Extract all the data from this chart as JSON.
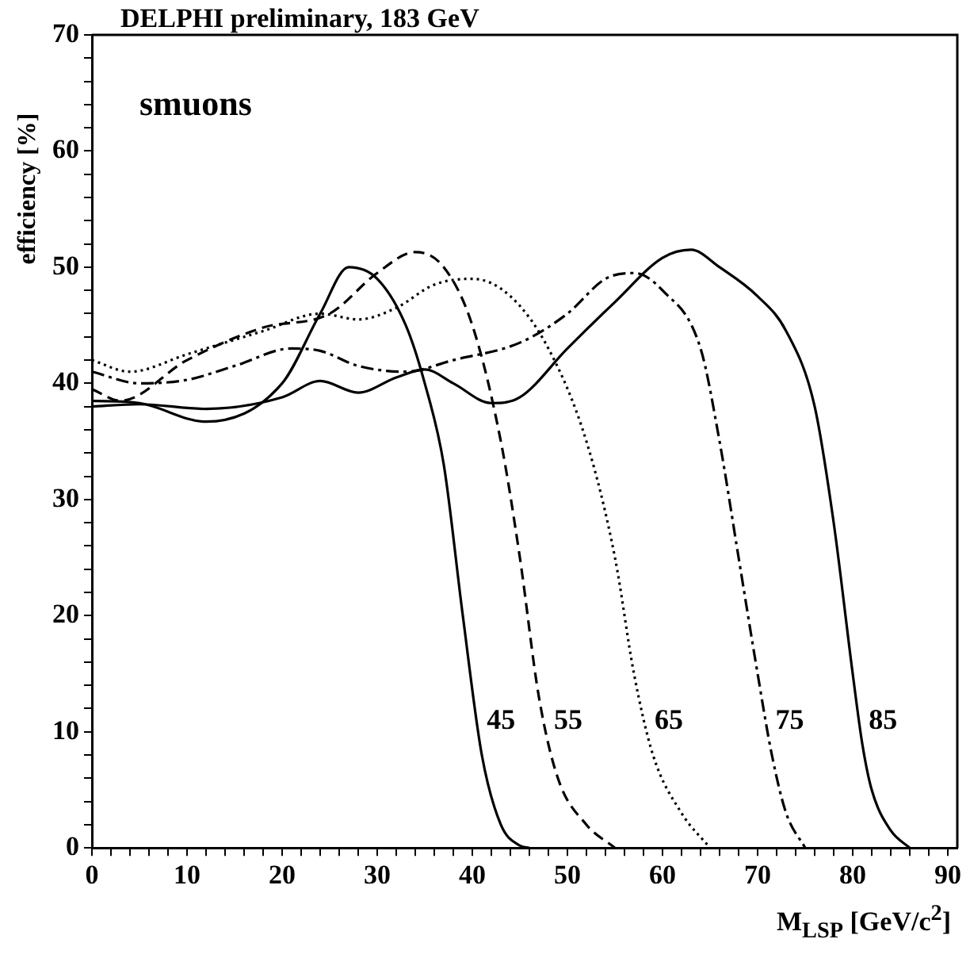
{
  "chart_data": {
    "type": "line",
    "title": "DELPHI preliminary, 183 GeV",
    "xlabel": "M$_{LSP}$ [GeV/c$^{2}$]",
    "ylabel": "efficiency [%]",
    "xlim": [
      0,
      91
    ],
    "ylim": [
      0,
      70
    ],
    "xticks": [
      0,
      {
        "value": 2,
        "label": null
      },
      {
        "value": 4,
        "label": null
      },
      {
        "value": 6,
        "label": null
      },
      {
        "value": 8,
        "label": null
      },
      10,
      {
        "value": 12,
        "label": null
      },
      {
        "value": 14,
        "label": null
      },
      {
        "value": 16,
        "label": null
      },
      {
        "value": 18,
        "label": null
      },
      20,
      {
        "value": 22,
        "label": null
      },
      {
        "value": 24,
        "label": null
      },
      {
        "value": 26,
        "label": null
      },
      {
        "value": 28,
        "label": null
      },
      30,
      {
        "value": 32,
        "label": null
      },
      {
        "value": 34,
        "label": null
      },
      {
        "value": 36,
        "label": null
      },
      {
        "value": 38,
        "label": null
      },
      40,
      {
        "value": 42,
        "label": null
      },
      {
        "value": 44,
        "label": null
      },
      {
        "value": 46,
        "label": null
      },
      {
        "value": 48,
        "label": null
      },
      50,
      {
        "value": 52,
        "label": null
      },
      {
        "value": 54,
        "label": null
      },
      {
        "value": 56,
        "label": null
      },
      {
        "value": 58,
        "label": null
      },
      60,
      {
        "value": 62,
        "label": null
      },
      {
        "value": 64,
        "label": null
      },
      {
        "value": 66,
        "label": null
      },
      {
        "value": 68,
        "label": null
      },
      70,
      {
        "value": 72,
        "label": null
      },
      {
        "value": 74,
        "label": null
      },
      {
        "value": 76,
        "label": null
      },
      {
        "value": 78,
        "label": null
      },
      80,
      {
        "value": 82,
        "label": null
      },
      {
        "value": 84,
        "label": null
      },
      {
        "value": 86,
        "label": null
      },
      {
        "value": 88,
        "label": null
      },
      90
    ],
    "yticks": [
      0,
      {
        "value": 2,
        "label": null
      },
      {
        "value": 4,
        "label": null
      },
      {
        "value": 6,
        "label": null
      },
      {
        "value": 8,
        "label": null
      },
      10,
      {
        "value": 12,
        "label": null
      },
      {
        "value": 14,
        "label": null
      },
      {
        "value": 16,
        "label": null
      },
      {
        "value": 18,
        "label": null
      },
      20,
      {
        "value": 22,
        "label": null
      },
      {
        "value": 24,
        "label": null
      },
      {
        "value": 26,
        "label": null
      },
      {
        "value": 28,
        "label": null
      },
      30,
      {
        "value": 32,
        "label": null
      },
      {
        "value": 34,
        "label": null
      },
      {
        "value": 36,
        "label": null
      },
      {
        "value": 38,
        "label": null
      },
      40,
      {
        "value": 42,
        "label": null
      },
      {
        "value": 44,
        "label": null
      },
      {
        "value": 46,
        "label": null
      },
      {
        "value": 48,
        "label": null
      },
      50,
      {
        "value": 52,
        "label": null
      },
      {
        "value": 54,
        "label": null
      },
      {
        "value": 56,
        "label": null
      },
      {
        "value": 58,
        "label": null
      },
      60,
      {
        "value": 62,
        "label": null
      },
      {
        "value": 64,
        "label": null
      },
      {
        "value": 66,
        "label": null
      },
      {
        "value": 68,
        "label": null
      },
      70
    ],
    "grid": false,
    "legend": false,
    "marker": "none",
    "series": [
      {
        "name": "45",
        "color": "#000000",
        "line_style": "solid",
        "x": [
          0,
          5,
          12,
          20,
          24,
          27,
          30,
          33,
          35,
          37,
          39,
          41,
          43,
          45,
          46
        ],
        "values": [
          38.5,
          38.3,
          36.7,
          40,
          46,
          50,
          49,
          45,
          40,
          33,
          20,
          8,
          2,
          0.2,
          0
        ]
      },
      {
        "name": "55",
        "color": "#000000",
        "line_style": "dashed",
        "x": [
          0,
          3,
          10,
          18,
          25,
          30,
          34,
          37,
          40,
          43,
          45,
          47,
          49,
          52,
          55
        ],
        "values": [
          39.5,
          38.5,
          42,
          44.8,
          46,
          49.5,
          51.3,
          50,
          45,
          35,
          25,
          13,
          6,
          2,
          0
        ]
      },
      {
        "name": "65",
        "color": "#000000",
        "line_style": "dotted",
        "x": [
          0,
          4,
          10,
          18,
          24,
          28,
          32,
          36,
          40,
          44,
          48,
          52,
          55,
          57,
          59,
          62,
          65
        ],
        "values": [
          42,
          41,
          42.5,
          44.5,
          46,
          45.5,
          46.5,
          48.5,
          49,
          47.5,
          43,
          35,
          25,
          15,
          8,
          3,
          0
        ]
      },
      {
        "name": "75",
        "color": "#000000",
        "line_style": "dashdot",
        "x": [
          0,
          5,
          10,
          15,
          21,
          24,
          28,
          33,
          38,
          45,
          50,
          54,
          57,
          60,
          64,
          66,
          68,
          70,
          71.5,
          73,
          75
        ],
        "values": [
          41,
          40,
          40.3,
          41.5,
          43,
          42.8,
          41.5,
          41,
          42,
          43.5,
          46,
          49,
          49.5,
          48,
          43,
          35,
          25,
          15,
          8,
          3,
          0
        ]
      },
      {
        "name": "85",
        "color": "#000000",
        "line_style": "solid",
        "x": [
          0,
          5,
          12,
          20,
          24,
          28,
          32,
          35,
          38,
          42,
          45,
          50,
          55,
          60,
          63,
          66,
          70,
          73,
          76,
          78,
          80,
          81,
          82,
          84,
          86
        ],
        "values": [
          38,
          38.2,
          37.8,
          38.8,
          40.2,
          39.2,
          40.5,
          41.2,
          40,
          38.3,
          38.8,
          43,
          47,
          50.8,
          51.5,
          50,
          47.5,
          44.5,
          38,
          28,
          15,
          9,
          5,
          1.5,
          0
        ]
      }
    ],
    "annotations": [
      "smuons"
    ]
  }
}
